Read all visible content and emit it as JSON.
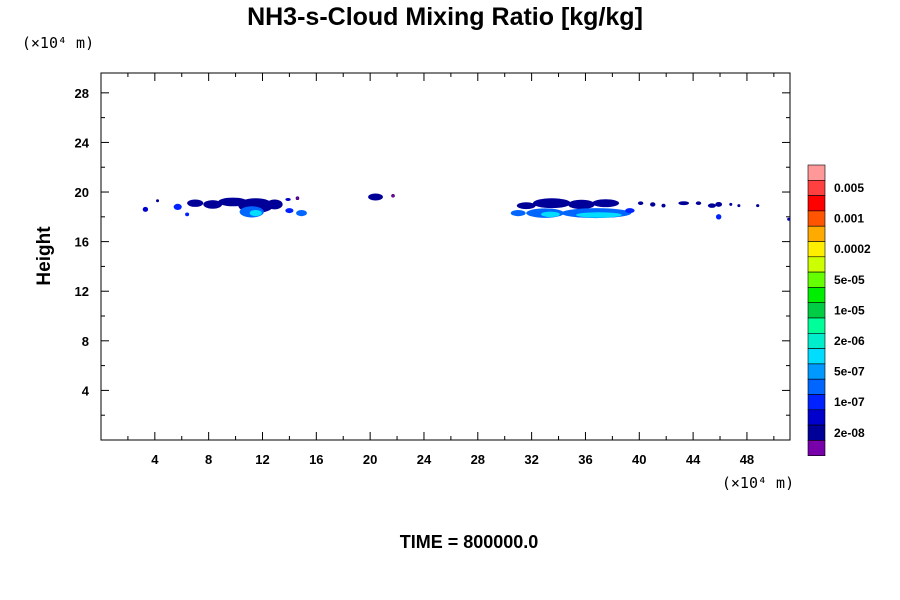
{
  "chart_data": {
    "type": "contour",
    "title": "NH3-s-Cloud Mixing Ratio [kg/kg]",
    "ylabel": "Height",
    "xlabel": "",
    "x_unit": "(×10⁴ m)",
    "y_unit": "(×10⁴ m)",
    "footer": "TIME = 800000.0",
    "xlim": [
      0,
      51.2
    ],
    "ylim": [
      0,
      29.6
    ],
    "x_ticks": [
      4,
      8,
      12,
      16,
      20,
      24,
      28,
      32,
      36,
      40,
      44,
      48
    ],
    "y_ticks": [
      4,
      8,
      12,
      16,
      20,
      24,
      28
    ],
    "colorbar": {
      "labels": [
        "0.005",
        "0.001",
        "0.0002",
        "5e-05",
        "1e-05",
        "2e-06",
        "5e-07",
        "1e-07",
        "2e-08"
      ],
      "colors": [
        "#ff9999",
        "#ff4040",
        "#ff0000",
        "#ff5500",
        "#ffaa00",
        "#ffee00",
        "#ccff00",
        "#66ff00",
        "#00ee00",
        "#00cc44",
        "#00ff99",
        "#00eecc",
        "#00ddff",
        "#0099ff",
        "#0066ff",
        "#0022ff",
        "#0000cc",
        "#000099",
        "#7700aa"
      ]
    },
    "cloud_patches": [
      {
        "x": 3.3,
        "y": 18.6,
        "rx": 0.2,
        "ry": 0.2,
        "level": 2
      },
      {
        "x": 4.2,
        "y": 19.3,
        "rx": 0.1,
        "ry": 0.1,
        "level": 1
      },
      {
        "x": 5.7,
        "y": 18.8,
        "rx": 0.3,
        "ry": 0.25,
        "level": 3
      },
      {
        "x": 6.4,
        "y": 18.2,
        "rx": 0.15,
        "ry": 0.15,
        "level": 3
      },
      {
        "x": 7.0,
        "y": 19.1,
        "rx": 0.6,
        "ry": 0.3,
        "level": 1
      },
      {
        "x": 8.3,
        "y": 19.0,
        "rx": 0.7,
        "ry": 0.35,
        "level": 1
      },
      {
        "x": 9.8,
        "y": 19.2,
        "rx": 1.1,
        "ry": 0.35,
        "level": 1
      },
      {
        "x": 11.5,
        "y": 18.9,
        "rx": 1.3,
        "ry": 0.6,
        "level": 1
      },
      {
        "x": 11.2,
        "y": 18.4,
        "rx": 0.9,
        "ry": 0.45,
        "level": 4
      },
      {
        "x": 11.5,
        "y": 18.3,
        "rx": 0.45,
        "ry": 0.25,
        "level": 6
      },
      {
        "x": 12.9,
        "y": 19.0,
        "rx": 0.6,
        "ry": 0.4,
        "level": 1
      },
      {
        "x": 13.9,
        "y": 19.4,
        "rx": 0.2,
        "ry": 0.12,
        "level": 2
      },
      {
        "x": 14.6,
        "y": 19.5,
        "rx": 0.1,
        "ry": 0.1,
        "level": 0
      },
      {
        "x": 14.0,
        "y": 18.5,
        "rx": 0.3,
        "ry": 0.2,
        "level": 3
      },
      {
        "x": 14.9,
        "y": 18.3,
        "rx": 0.4,
        "ry": 0.25,
        "level": 4
      },
      {
        "x": 20.4,
        "y": 19.6,
        "rx": 0.55,
        "ry": 0.28,
        "level": 1
      },
      {
        "x": 21.7,
        "y": 19.7,
        "rx": 0.08,
        "ry": 0.08,
        "level": 0
      },
      {
        "x": 31.0,
        "y": 18.3,
        "rx": 0.55,
        "ry": 0.25,
        "level": 4
      },
      {
        "x": 31.6,
        "y": 18.9,
        "rx": 0.7,
        "ry": 0.28,
        "level": 1
      },
      {
        "x": 33.5,
        "y": 19.1,
        "rx": 1.4,
        "ry": 0.4,
        "level": 1
      },
      {
        "x": 33.0,
        "y": 18.3,
        "rx": 1.4,
        "ry": 0.38,
        "level": 4
      },
      {
        "x": 33.4,
        "y": 18.2,
        "rx": 0.7,
        "ry": 0.22,
        "level": 6
      },
      {
        "x": 35.7,
        "y": 19.0,
        "rx": 1.0,
        "ry": 0.38,
        "level": 1
      },
      {
        "x": 37.5,
        "y": 19.1,
        "rx": 1.0,
        "ry": 0.32,
        "level": 1
      },
      {
        "x": 36.8,
        "y": 18.3,
        "rx": 2.6,
        "ry": 0.4,
        "level": 4
      },
      {
        "x": 37.0,
        "y": 18.15,
        "rx": 1.7,
        "ry": 0.22,
        "level": 6
      },
      {
        "x": 39.3,
        "y": 18.5,
        "rx": 0.35,
        "ry": 0.2,
        "level": 3
      },
      {
        "x": 40.1,
        "y": 19.1,
        "rx": 0.2,
        "ry": 0.15,
        "level": 1
      },
      {
        "x": 41.0,
        "y": 19.0,
        "rx": 0.2,
        "ry": 0.18,
        "level": 1
      },
      {
        "x": 41.8,
        "y": 18.9,
        "rx": 0.15,
        "ry": 0.15,
        "level": 1
      },
      {
        "x": 43.3,
        "y": 19.1,
        "rx": 0.4,
        "ry": 0.16,
        "level": 1
      },
      {
        "x": 44.4,
        "y": 19.1,
        "rx": 0.2,
        "ry": 0.15,
        "level": 1
      },
      {
        "x": 45.4,
        "y": 18.9,
        "rx": 0.3,
        "ry": 0.18,
        "level": 1
      },
      {
        "x": 45.9,
        "y": 19.0,
        "rx": 0.25,
        "ry": 0.2,
        "level": 1
      },
      {
        "x": 45.9,
        "y": 18.0,
        "rx": 0.2,
        "ry": 0.22,
        "level": 3
      },
      {
        "x": 46.8,
        "y": 19.0,
        "rx": 0.1,
        "ry": 0.1,
        "level": 1
      },
      {
        "x": 47.4,
        "y": 18.9,
        "rx": 0.1,
        "ry": 0.1,
        "level": 1
      },
      {
        "x": 48.8,
        "y": 18.9,
        "rx": 0.12,
        "ry": 0.12,
        "level": 1
      },
      {
        "x": 51.1,
        "y": 17.8,
        "rx": 0.1,
        "ry": 0.1,
        "level": 2
      }
    ]
  }
}
